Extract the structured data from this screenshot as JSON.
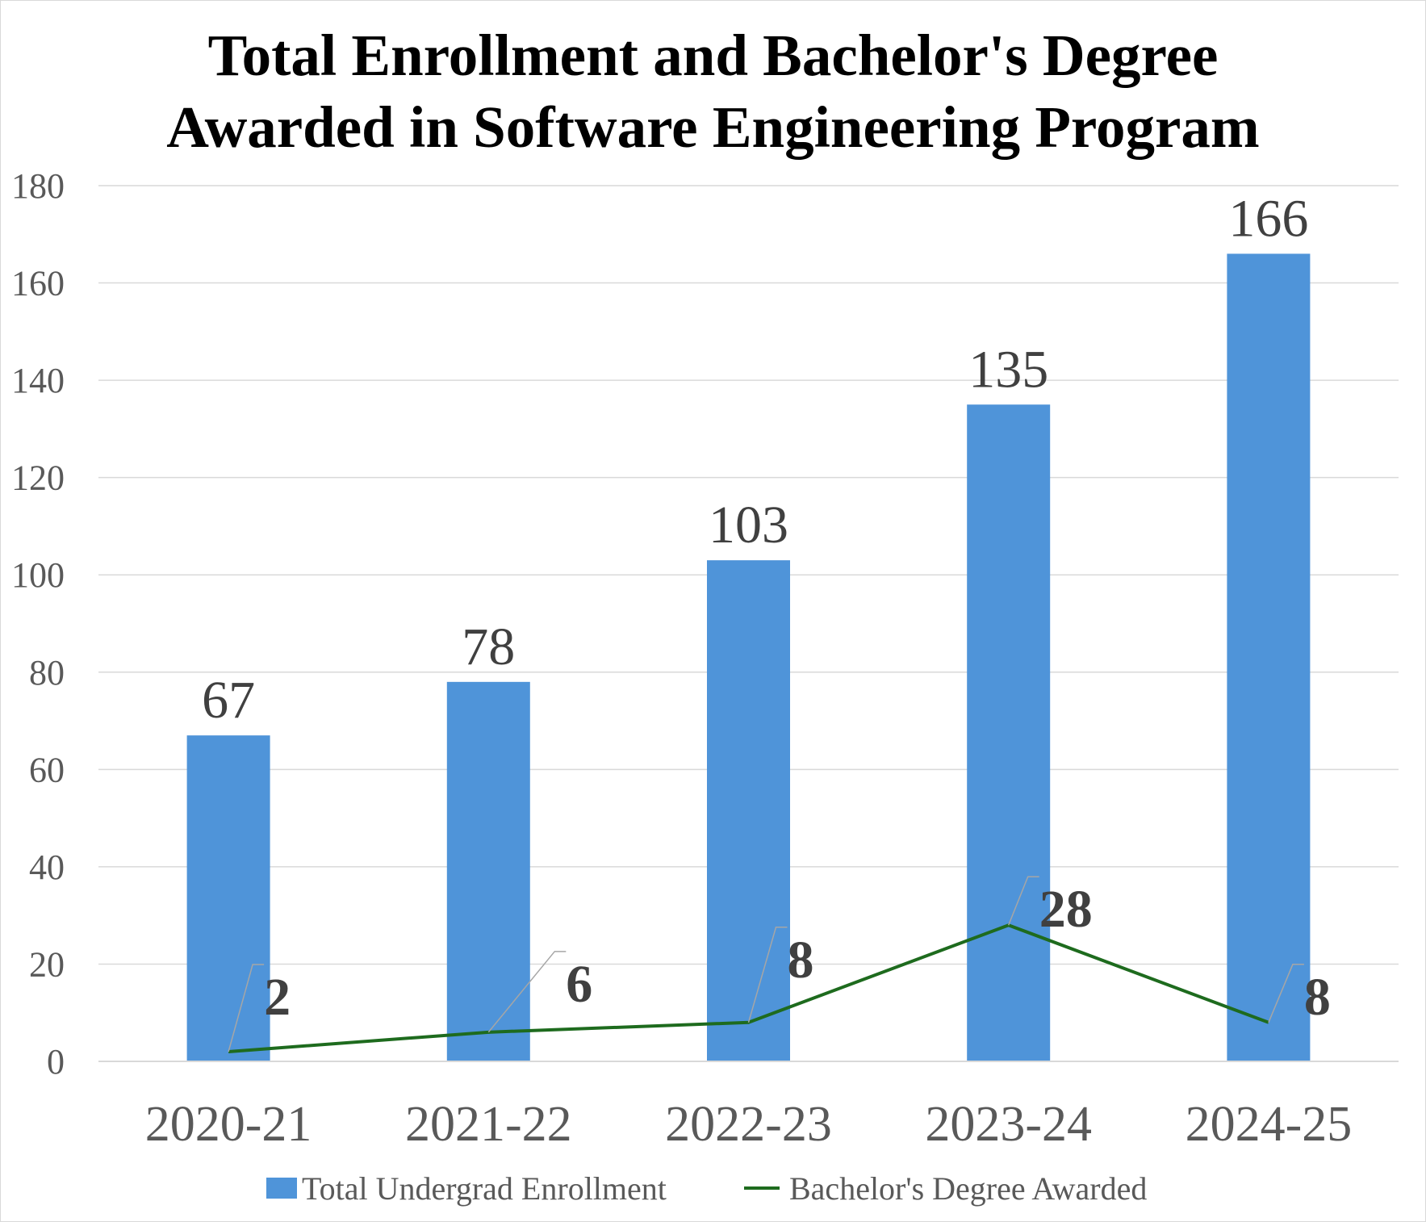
{
  "chart_data": {
    "type": "bar",
    "title_lines": [
      "Total Enrollment and Bachelor's Degree",
      "Awarded in Software Engineering Program"
    ],
    "categories": [
      "2020-21",
      "2021-22",
      "2022-23",
      "2023-24",
      "2024-25"
    ],
    "series": [
      {
        "name": "Total Undergrad Enrollment",
        "type": "bar",
        "color": "#4f94d9",
        "values": [
          67,
          78,
          103,
          135,
          166
        ]
      },
      {
        "name": "Bachelor's Degree Awarded",
        "type": "line",
        "color": "#1e6b1e",
        "values": [
          2,
          6,
          8,
          28,
          8
        ]
      }
    ],
    "ylim": [
      0,
      180
    ],
    "yticks": [
      0,
      20,
      40,
      60,
      80,
      100,
      120,
      140,
      160,
      180
    ],
    "grid": true,
    "legend_position": "bottom",
    "xlabel": "",
    "ylabel": ""
  }
}
